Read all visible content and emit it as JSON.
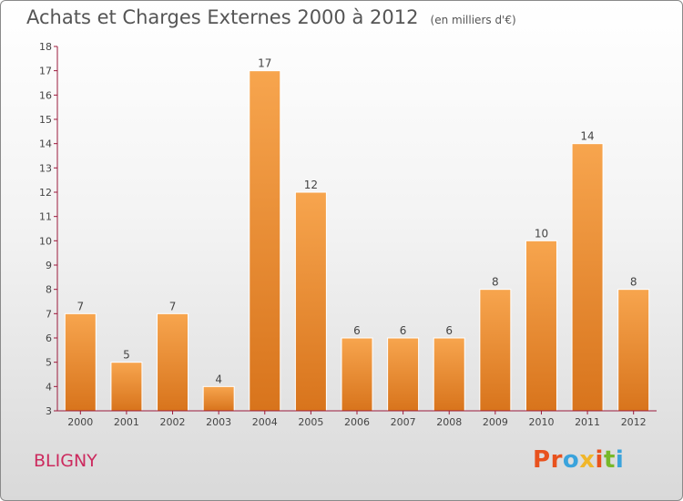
{
  "header": {
    "title": "Achats et Charges Externes 2000 à 2012",
    "unit": "(en milliers d'€)"
  },
  "footer": {
    "commune": "BLIGNY",
    "logo": "Proxiti",
    "logo_colors": [
      "#e8521e",
      "#e8521e",
      "#3aa3dc",
      "#f0b62a",
      "#e8521e",
      "#77b82a",
      "#3aa3dc"
    ]
  },
  "colors": {
    "bar_top": "#f7a54e",
    "bar_bottom": "#d8741c",
    "axis": "#9b1a3c",
    "commune": "#cc2a5e"
  },
  "chart_data": {
    "type": "bar",
    "title": "Achats et Charges Externes 2000 à 2012",
    "subtitle": "(en milliers d'€)",
    "categories": [
      "2000",
      "2001",
      "2002",
      "2003",
      "2004",
      "2005",
      "2006",
      "2007",
      "2008",
      "2009",
      "2010",
      "2011",
      "2012"
    ],
    "values": [
      7,
      5,
      7,
      4,
      17,
      12,
      6,
      6,
      6,
      8,
      10,
      14,
      8
    ],
    "ylim": [
      3,
      18
    ],
    "yticks": [
      3,
      4,
      5,
      6,
      7,
      8,
      9,
      10,
      11,
      12,
      13,
      14,
      15,
      16,
      17,
      18
    ],
    "xlabel": "",
    "ylabel": "",
    "grid": false,
    "data_labels": true
  }
}
